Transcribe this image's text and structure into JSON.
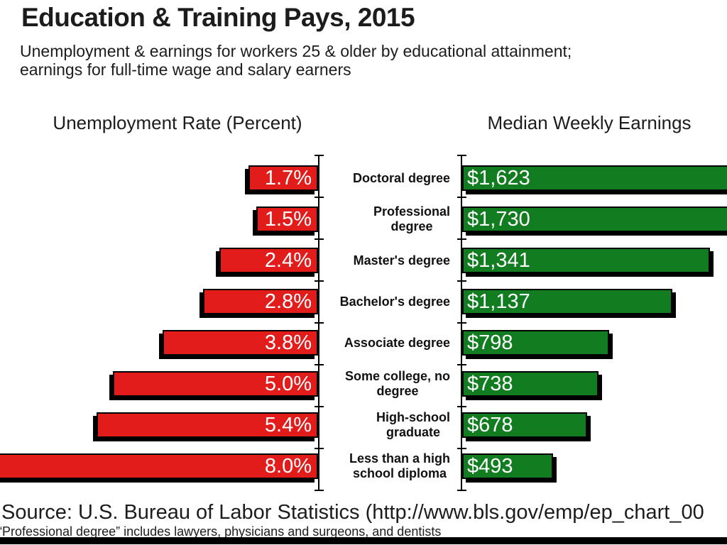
{
  "title": "Education & Training Pays, 2015",
  "subtitle_lines": [
    "Unemployment & earnings for workers 25 & older by educational attainment;",
    "earnings for full-time wage and salary earners"
  ],
  "column_headers": {
    "left": "Unemployment Rate (Percent)",
    "right": "Median Weekly Earnings"
  },
  "chart_data": {
    "type": "bar",
    "orientation": "horizontal back-to-back (pyramid style)",
    "title": "Education & Training Pays, 2015",
    "categories": [
      "Doctoral degree",
      "Professional degree",
      "Master's degree",
      "Bachelor's degree",
      "Associate degree",
      "Some college, no degree",
      "High-school graduate",
      "Less than a high school diploma"
    ],
    "category_display_lines": [
      [
        "Doctoral degree"
      ],
      [
        "Professional",
        "degree"
      ],
      [
        "Master's degree"
      ],
      [
        "Bachelor's degree"
      ],
      [
        "Associate degree"
      ],
      [
        "Some college, no",
        "degree"
      ],
      [
        "High-school",
        "graduate"
      ],
      [
        "Less than a high",
        "school diploma"
      ]
    ],
    "series": [
      {
        "name": "Unemployment Rate (Percent)",
        "direction": "left",
        "color": "#e21b1b",
        "values": [
          1.7,
          1.5,
          2.4,
          2.8,
          3.8,
          5.0,
          5.4,
          8.0
        ],
        "labels": [
          "1.7%",
          "1.5%",
          "2.4%",
          "2.8%",
          "3.8%",
          "5.0%",
          "5.4%",
          "8.0%"
        ]
      },
      {
        "name": "Median Weekly Earnings",
        "direction": "right",
        "color": "#127d20",
        "values": [
          1623,
          1730,
          1341,
          1137,
          798,
          738,
          678,
          493
        ],
        "labels": [
          "$1,623",
          "$1,730",
          "$1,341",
          "$1,137",
          "$798",
          "$738",
          "$678",
          "$493"
        ]
      }
    ],
    "value_label_color": "#ffffff",
    "bar_border_color": "#000000",
    "bar_shadow_color": "#000000",
    "grid": false,
    "legend_position": "column headers above each half"
  },
  "source": "Source: U.S. Bureau of Labor Statistics  (http://www.bls.gov/emp/ep_chart_00",
  "footnote": "“Professional degree” includes lawyers, physicians and surgeons, and dentists"
}
